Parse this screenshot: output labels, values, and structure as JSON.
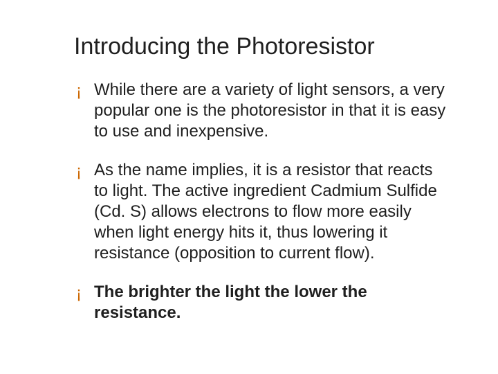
{
  "slide": {
    "title": "Introducing the Photoresistor",
    "title_fontsize": 34,
    "title_color": "#1f1f1f",
    "bullet_color": "#cc6600",
    "bullet_glyph": "¡",
    "text_color": "#1f1f1f",
    "body_fontsize": 24,
    "bullets": [
      {
        "text": "While there are a variety of light sensors, a very popular one is the photoresistor in that it is easy to use and inexpensive.",
        "bold": false
      },
      {
        "text": "As the name implies, it is a resistor that reacts to light.  The active ingredient Cadmium Sulfide (Cd. S) allows electrons to flow more easily when light energy hits it, thus lowering it resistance (opposition to current flow).",
        "bold": false
      },
      {
        "text": "The brighter the light the lower the resistance.",
        "bold": true
      }
    ],
    "background_color": "#ffffff"
  }
}
